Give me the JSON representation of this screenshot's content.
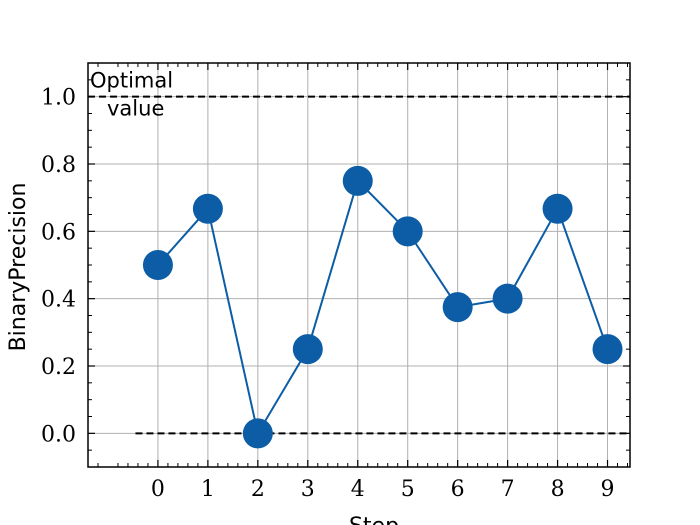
{
  "chart_data": {
    "type": "line",
    "xlabel": "Step",
    "ylabel": "BinaryPrecision",
    "x": [
      0,
      1,
      2,
      3,
      4,
      5,
      6,
      7,
      8,
      9
    ],
    "xticks": [
      "0",
      "1",
      "2",
      "3",
      "4",
      "5",
      "6",
      "7",
      "8",
      "9"
    ],
    "yticks": [
      "0.0",
      "0.2",
      "0.4",
      "0.6",
      "0.8",
      "1.0"
    ],
    "xlim": [
      -1.4,
      9.45
    ],
    "ylim": [
      -0.1,
      1.1
    ],
    "grid": true,
    "series": [
      {
        "values": [
          0.5,
          0.667,
          0.0,
          0.25,
          0.75,
          0.6,
          0.375,
          0.4,
          0.667,
          0.25
        ],
        "color": "#0C5DA5"
      }
    ],
    "reference_lines": [
      {
        "y": 1.0,
        "style": "dashed",
        "color": "#000000",
        "label": "Optimal\n value"
      },
      {
        "y": 0.0,
        "style": "dashed",
        "color": "#000000"
      }
    ]
  }
}
